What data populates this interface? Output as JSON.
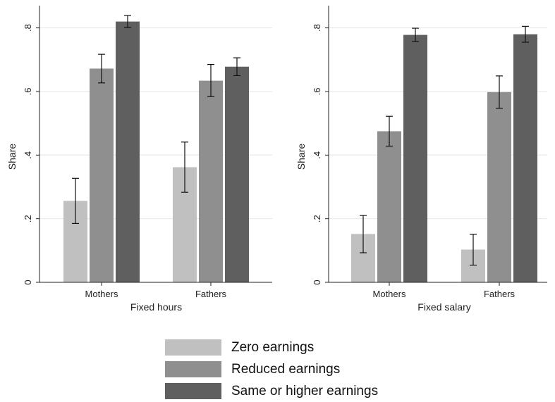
{
  "colors": {
    "series": [
      "#c0c0c0",
      "#8f8f8f",
      "#5f5f5f"
    ],
    "grid": "#e6e6e6",
    "axis": "#222222",
    "errorbar": "#111111"
  },
  "legend_items": [
    {
      "label": "Zero earnings"
    },
    {
      "label": "Reduced earnings"
    },
    {
      "label": "Same or higher earnings"
    }
  ],
  "chart_data": [
    {
      "type": "bar",
      "title": "",
      "xlabel": "Fixed hours",
      "ylabel": "Share",
      "categories": [
        "Mothers",
        "Fathers"
      ],
      "ylim": [
        0,
        0.87
      ],
      "yticks": [
        0,
        0.2,
        0.4,
        0.6,
        0.8
      ],
      "ytick_labels": [
        "0",
        ".2",
        ".4",
        ".6",
        ".8"
      ],
      "grid": true,
      "legend_position": "bottom",
      "series": [
        {
          "name": "Zero earnings",
          "values": [
            0.256,
            0.362
          ],
          "ci_low": [
            0.185,
            0.283
          ],
          "ci_high": [
            0.327,
            0.441
          ]
        },
        {
          "name": "Reduced earnings",
          "values": [
            0.672,
            0.634
          ],
          "ci_low": [
            0.627,
            0.584
          ],
          "ci_high": [
            0.717,
            0.685
          ]
        },
        {
          "name": "Same or higher earnings",
          "values": [
            0.82,
            0.678
          ],
          "ci_low": [
            0.801,
            0.65
          ],
          "ci_high": [
            0.839,
            0.706
          ]
        }
      ]
    },
    {
      "type": "bar",
      "title": "",
      "xlabel": "Fixed salary",
      "ylabel": "Share",
      "categories": [
        "Mothers",
        "Fathers"
      ],
      "ylim": [
        0,
        0.87
      ],
      "yticks": [
        0,
        0.2,
        0.4,
        0.6,
        0.8
      ],
      "ytick_labels": [
        "0",
        ".2",
        ".4",
        ".6",
        ".8"
      ],
      "grid": true,
      "legend_position": "bottom",
      "series": [
        {
          "name": "Zero earnings",
          "values": [
            0.152,
            0.103
          ],
          "ci_low": [
            0.093,
            0.054
          ],
          "ci_high": [
            0.21,
            0.151
          ]
        },
        {
          "name": "Reduced earnings",
          "values": [
            0.475,
            0.598
          ],
          "ci_low": [
            0.428,
            0.547
          ],
          "ci_high": [
            0.522,
            0.649
          ]
        },
        {
          "name": "Same or higher earnings",
          "values": [
            0.778,
            0.78
          ],
          "ci_low": [
            0.757,
            0.755
          ],
          "ci_high": [
            0.799,
            0.805
          ]
        }
      ]
    }
  ]
}
